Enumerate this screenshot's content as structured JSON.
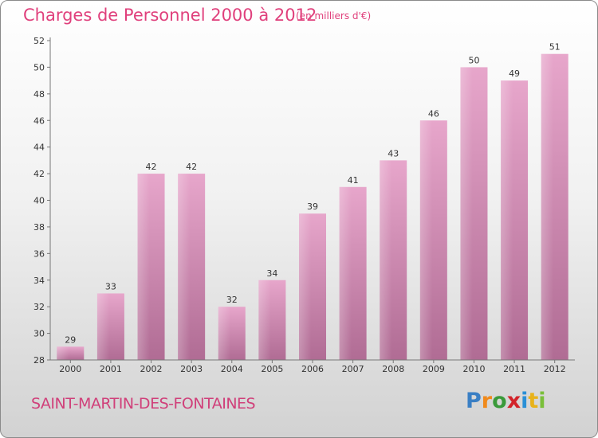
{
  "header": {
    "title": "Charges de Personnel 2000 à 2012",
    "subtitle": "(en milliers d'€)"
  },
  "footer": {
    "commune": "SAINT-MARTIN-DES-FONTAINES",
    "logo": [
      "P",
      "r",
      "o",
      "x",
      "i",
      "t",
      "i"
    ],
    "logo_colors": [
      "#3a7fc4",
      "#f08a1c",
      "#3a9a3a",
      "#d2232a",
      "#2a8fd6",
      "#e8b21a",
      "#7abf3a"
    ]
  },
  "chart_data": {
    "type": "bar",
    "title": "Charges de Personnel 2000 à 2012",
    "subtitle": "(en milliers d'€)",
    "categories": [
      "2000",
      "2001",
      "2002",
      "2003",
      "2004",
      "2005",
      "2006",
      "2007",
      "2008",
      "2009",
      "2010",
      "2011",
      "2012"
    ],
    "values": [
      29,
      33,
      42,
      42,
      32,
      34,
      39,
      41,
      43,
      46,
      50,
      49,
      51
    ],
    "ylim": [
      28,
      52
    ],
    "yticks": [
      28,
      30,
      32,
      34,
      36,
      38,
      40,
      42,
      44,
      46,
      48,
      50,
      52
    ],
    "grid": false,
    "bar_color_top": "#e7a6cb",
    "bar_color_bottom": "#b06c94"
  }
}
